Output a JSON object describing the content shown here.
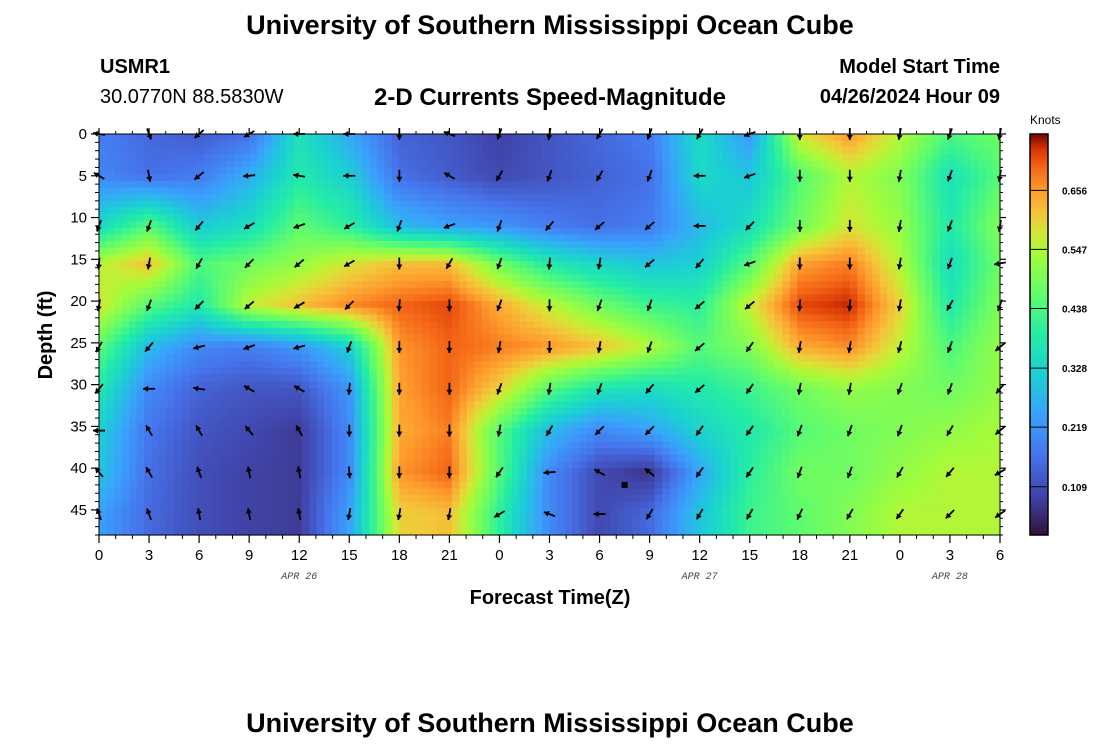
{
  "header": {
    "title": "University of Southern Mississippi Ocean Cube",
    "station": "USMR1",
    "coords": "30.0770N  88.5830W",
    "subtitle": "2-D Currents Speed-Magnitude",
    "model_label": "Model Start Time",
    "model_time": "04/26/2024 Hour 09"
  },
  "footer": {
    "title": "University of Southern Mississippi Ocean Cube"
  },
  "chart_data": {
    "type": "heatmap",
    "title": "2-D Currents Speed-Magnitude",
    "xlabel": "Forecast Time(Z)",
    "ylabel": "Depth (ft)",
    "x_hours": [
      0,
      3,
      6,
      9,
      12,
      15,
      18,
      21,
      24,
      27,
      30,
      33,
      36,
      39,
      42,
      45,
      48,
      51,
      54
    ],
    "x_tick_labels": [
      "0",
      "3",
      "6",
      "9",
      "12",
      "15",
      "18",
      "21",
      "0",
      "3",
      "6",
      "9",
      "12",
      "15",
      "18",
      "21",
      "0",
      "3",
      "6"
    ],
    "x_range_hours": [
      0,
      54
    ],
    "date_labels": [
      {
        "text": "APR 26",
        "hour": 12
      },
      {
        "text": "APR 27",
        "hour": 36
      },
      {
        "text": "APR 28",
        "hour": 51
      }
    ],
    "y_ticks": [
      0,
      5,
      10,
      15,
      20,
      25,
      30,
      35,
      40,
      45
    ],
    "y_range": [
      0,
      48
    ],
    "colorbar": {
      "label": "Knots",
      "ticks": [
        0.109,
        0.219,
        0.328,
        0.438,
        0.547,
        0.656
      ],
      "range": [
        0.02,
        0.76
      ]
    },
    "vector_depths": [
      0,
      5,
      11,
      15.5,
      20.5,
      25.5,
      30.5,
      35.5,
      40.5,
      45.5
    ],
    "vector_hours": [
      0,
      3,
      6,
      9,
      12,
      15,
      18,
      21,
      24,
      27,
      30,
      33,
      36,
      39,
      42,
      45,
      48,
      51,
      54
    ],
    "speed_knots": [
      [
        0.18,
        0.15,
        0.13,
        0.16,
        0.36,
        0.25,
        0.14,
        0.12,
        0.09,
        0.12,
        0.15,
        0.18,
        0.35,
        0.22,
        0.58,
        0.66,
        0.55,
        0.44,
        0.48
      ],
      [
        0.2,
        0.16,
        0.18,
        0.26,
        0.38,
        0.32,
        0.16,
        0.13,
        0.1,
        0.12,
        0.14,
        0.16,
        0.34,
        0.3,
        0.45,
        0.55,
        0.5,
        0.36,
        0.45
      ],
      [
        0.34,
        0.45,
        0.31,
        0.35,
        0.46,
        0.4,
        0.28,
        0.24,
        0.22,
        0.18,
        0.16,
        0.18,
        0.28,
        0.35,
        0.48,
        0.58,
        0.52,
        0.38,
        0.5
      ],
      [
        0.55,
        0.62,
        0.44,
        0.48,
        0.52,
        0.58,
        0.62,
        0.62,
        0.48,
        0.38,
        0.33,
        0.3,
        0.32,
        0.45,
        0.65,
        0.68,
        0.55,
        0.35,
        0.48
      ],
      [
        0.58,
        0.45,
        0.38,
        0.56,
        0.62,
        0.67,
        0.7,
        0.72,
        0.64,
        0.56,
        0.48,
        0.42,
        0.4,
        0.57,
        0.72,
        0.74,
        0.6,
        0.38,
        0.5
      ],
      [
        0.46,
        0.28,
        0.2,
        0.18,
        0.22,
        0.32,
        0.66,
        0.7,
        0.68,
        0.66,
        0.62,
        0.55,
        0.45,
        0.5,
        0.64,
        0.67,
        0.56,
        0.44,
        0.52
      ],
      [
        0.38,
        0.2,
        0.14,
        0.12,
        0.12,
        0.22,
        0.65,
        0.7,
        0.6,
        0.45,
        0.37,
        0.35,
        0.38,
        0.42,
        0.48,
        0.52,
        0.5,
        0.48,
        0.52
      ],
      [
        0.32,
        0.17,
        0.12,
        0.1,
        0.08,
        0.2,
        0.64,
        0.68,
        0.45,
        0.28,
        0.2,
        0.24,
        0.33,
        0.38,
        0.45,
        0.48,
        0.5,
        0.52,
        0.54
      ],
      [
        0.3,
        0.16,
        0.11,
        0.09,
        0.08,
        0.2,
        0.66,
        0.7,
        0.45,
        0.2,
        0.1,
        0.07,
        0.25,
        0.4,
        0.48,
        0.48,
        0.52,
        0.55,
        0.55
      ],
      [
        0.24,
        0.15,
        0.11,
        0.09,
        0.08,
        0.24,
        0.6,
        0.62,
        0.4,
        0.2,
        0.1,
        0.15,
        0.3,
        0.42,
        0.46,
        0.5,
        0.55,
        0.55,
        0.55
      ]
    ],
    "direction_deg": [
      [
        280,
        160,
        230,
        240,
        270,
        270,
        180,
        290,
        200,
        190,
        210,
        200,
        210,
        250,
        180,
        180,
        190,
        200,
        190
      ],
      [
        300,
        170,
        230,
        265,
        280,
        270,
        180,
        300,
        210,
        200,
        210,
        200,
        270,
        250,
        180,
        180,
        190,
        200,
        190
      ],
      [
        200,
        200,
        220,
        240,
        250,
        240,
        200,
        250,
        200,
        220,
        230,
        230,
        270,
        225,
        180,
        180,
        190,
        200,
        190
      ],
      [
        185,
        190,
        210,
        225,
        230,
        240,
        180,
        210,
        200,
        185,
        190,
        230,
        220,
        250,
        180,
        180,
        190,
        200,
        260
      ],
      [
        190,
        200,
        225,
        230,
        240,
        225,
        185,
        180,
        200,
        180,
        200,
        200,
        230,
        230,
        185,
        185,
        190,
        210,
        200
      ],
      [
        210,
        220,
        255,
        250,
        255,
        200,
        180,
        180,
        190,
        180,
        190,
        200,
        230,
        215,
        190,
        190,
        195,
        200,
        230
      ],
      [
        220,
        270,
        280,
        300,
        300,
        185,
        180,
        180,
        200,
        190,
        200,
        220,
        230,
        215,
        190,
        190,
        200,
        200,
        220
      ],
      [
        270,
        330,
        330,
        320,
        330,
        180,
        180,
        180,
        190,
        210,
        225,
        225,
        215,
        215,
        200,
        200,
        200,
        210,
        230
      ],
      [
        320,
        330,
        340,
        350,
        350,
        175,
        180,
        180,
        215,
        265,
        300,
        310,
        215,
        215,
        200,
        200,
        210,
        220,
        240
      ],
      [
        340,
        340,
        350,
        350,
        350,
        190,
        190,
        190,
        240,
        290,
        270,
        210,
        210,
        210,
        205,
        210,
        215,
        225,
        235
      ]
    ]
  }
}
